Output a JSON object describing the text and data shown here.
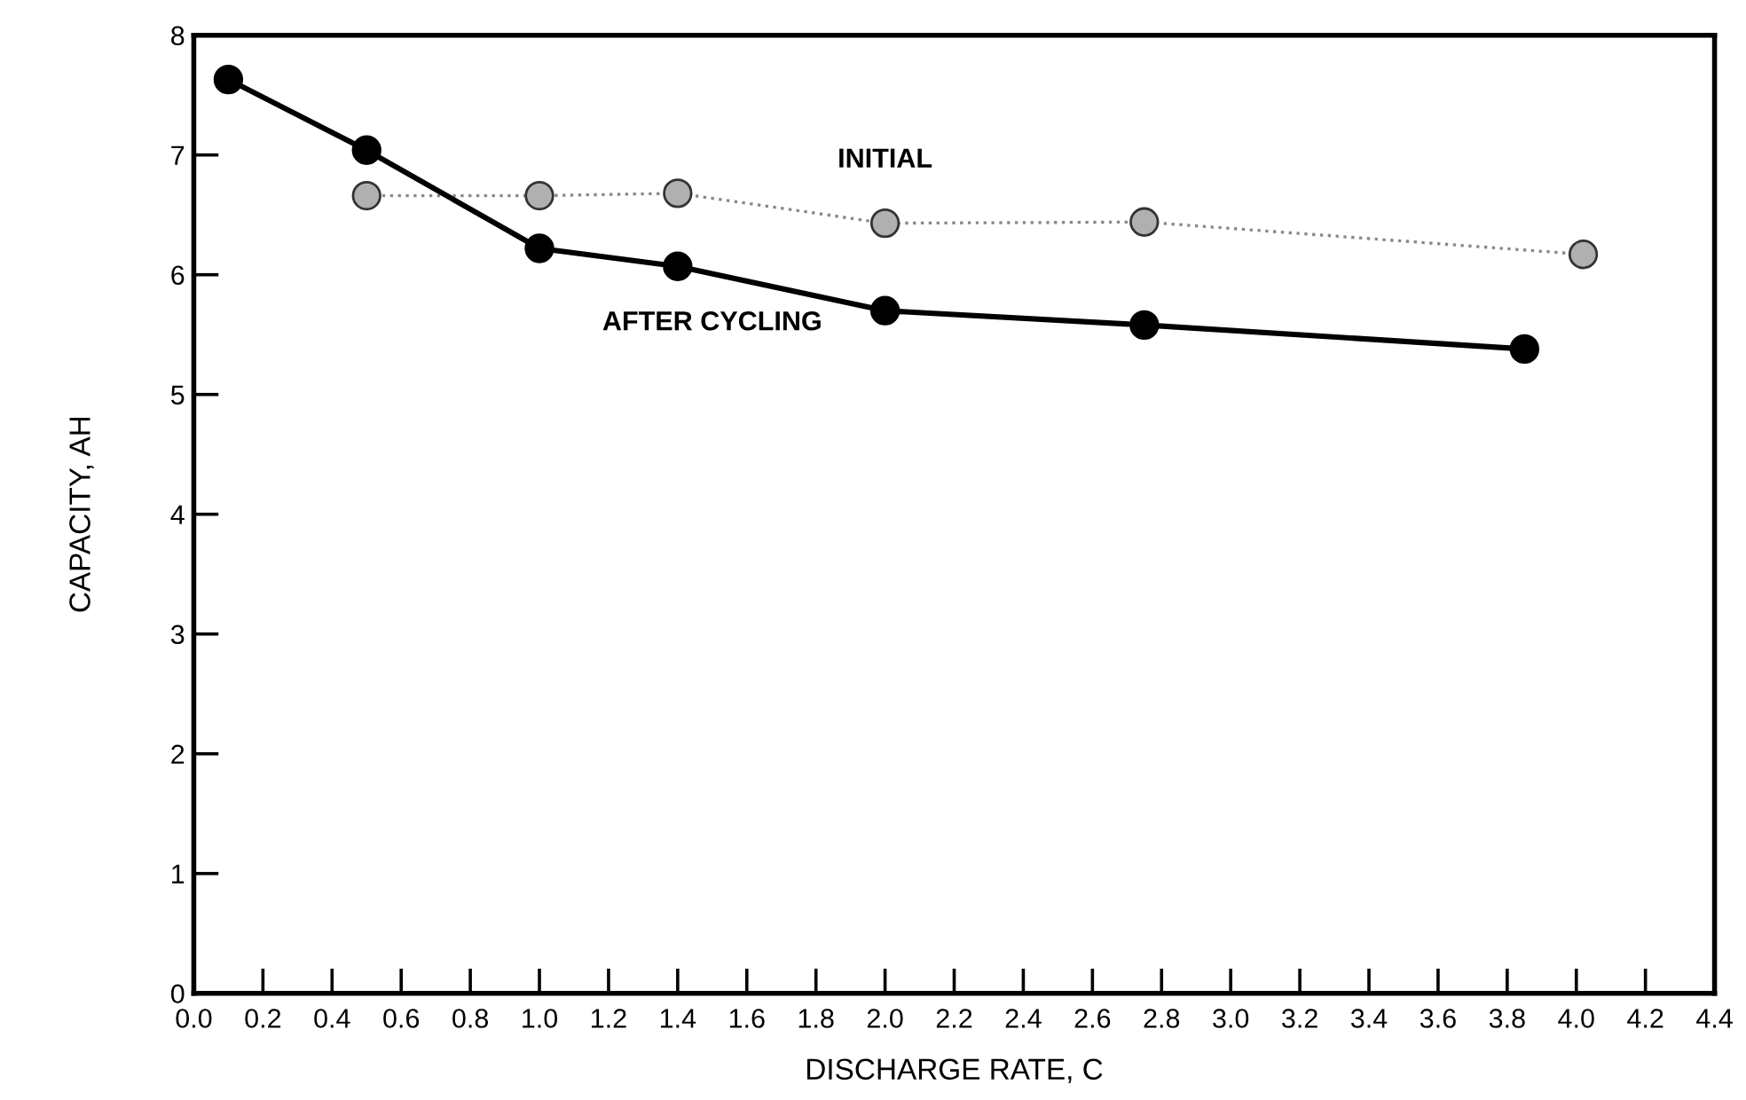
{
  "chart_data": {
    "type": "line",
    "xlabel": "DISCHARGE RATE, C",
    "ylabel": "CAPACITY, AH",
    "series": [
      {
        "name": "INITIAL",
        "color": "#888888",
        "line_style": "dotted",
        "x": [
          0.5,
          1.0,
          1.4,
          2.0,
          2.75,
          4.02
        ],
        "values": [
          6.66,
          6.66,
          6.68,
          6.43,
          6.44,
          6.17
        ]
      },
      {
        "name": "AFTER CYCLING",
        "color": "#000000",
        "line_style": "solid",
        "x": [
          0.1,
          0.5,
          1.0,
          1.4,
          2.0,
          2.75,
          3.85
        ],
        "values": [
          7.63,
          7.04,
          6.22,
          6.07,
          5.7,
          5.58,
          5.38
        ]
      }
    ],
    "marker": "circle",
    "xlim": [
      0,
      4.4
    ],
    "ylim": [
      0,
      8
    ],
    "xticks": [
      {
        "value": 0,
        "label": "0.0"
      },
      0.2,
      0.4,
      0.6,
      0.8,
      {
        "value": 1,
        "label": "1.0"
      },
      1.2,
      1.4,
      1.6,
      1.8,
      {
        "value": 2,
        "label": "2.0"
      },
      2.2,
      2.4,
      2.6,
      2.8,
      {
        "value": 3,
        "label": "3.0"
      },
      3.2,
      3.4,
      3.6,
      3.8,
      {
        "value": 4,
        "label": "4.0"
      },
      4.2,
      4.4
    ],
    "yticks": [
      0,
      1,
      2,
      3,
      4,
      5,
      6,
      7,
      8
    ],
    "grid": false,
    "legend": false
  }
}
